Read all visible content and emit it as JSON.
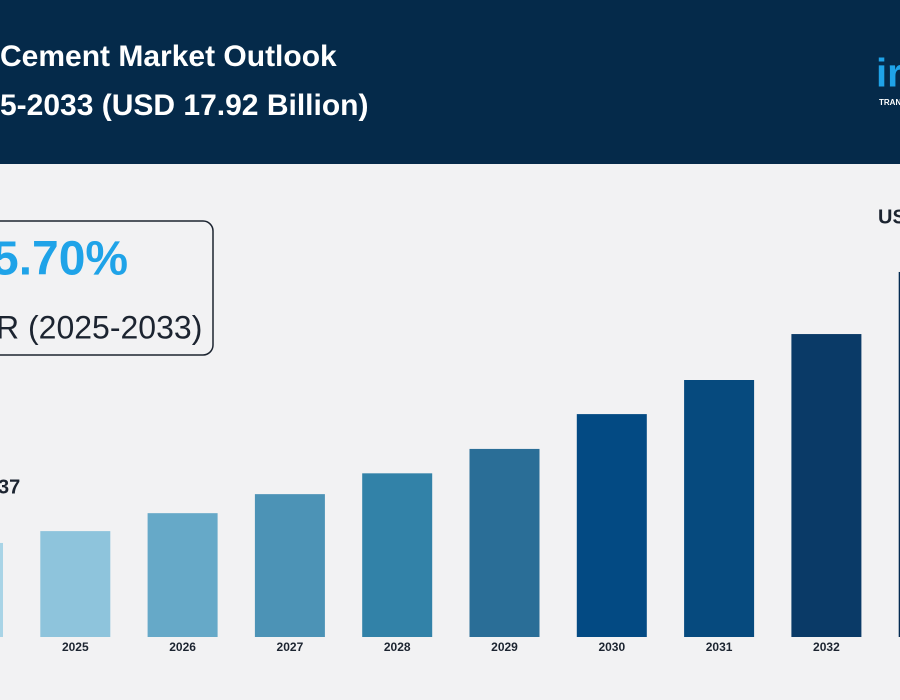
{
  "chart_data": {
    "type": "bar",
    "title": [
      "Cement Market Outlook",
      "5-2033 (USD 17.92 Billion)"
    ],
    "logo": [
      "ir",
      "TRAN"
    ],
    "cagr_box": [
      "5.70%",
      "R (2025-2033)"
    ],
    "annotations": [
      "37",
      "US"
    ],
    "categories": [
      null,
      "2025",
      "2026",
      "2027",
      "2028",
      "2029",
      "2030",
      "2031",
      "2032",
      null
    ],
    "values": [
      10.37,
      10.7,
      11.2,
      11.73,
      12.31,
      12.99,
      13.96,
      14.91,
      16.19,
      17.92
    ],
    "colors": [
      "#a9d4e6",
      "#8ec4dc",
      "#66a9c8",
      "#4c93b6",
      "#3282a8",
      "#2a6e97",
      "#034a83",
      "#064a7e",
      "#0a3a67",
      "#052c52"
    ],
    "ylim": [
      7.75,
      20.9
    ]
  }
}
